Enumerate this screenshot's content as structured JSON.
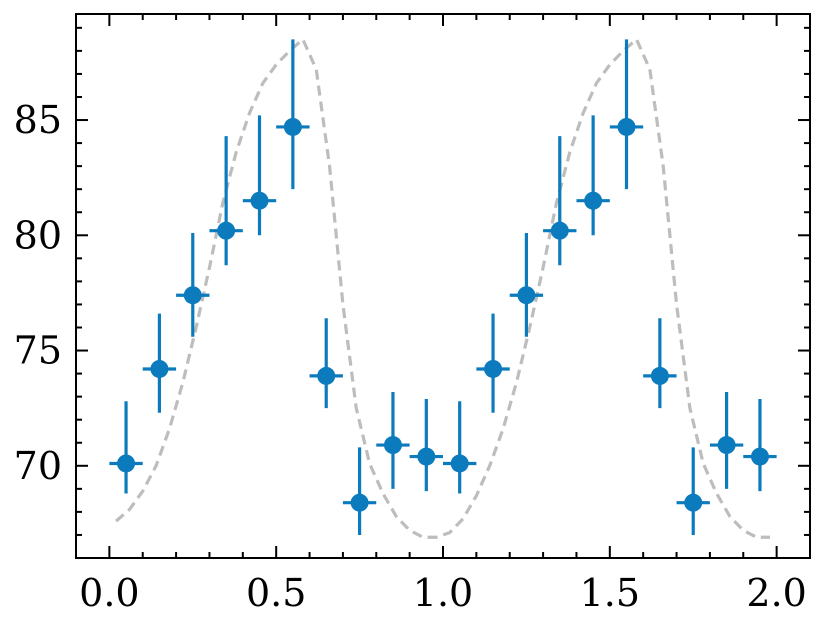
{
  "chart_data": {
    "type": "scatter",
    "title": "",
    "xlabel": "",
    "ylabel": "",
    "xlim": [
      -0.1,
      2.1
    ],
    "ylim": [
      66,
      89.6
    ],
    "x_ticks": [
      0.0,
      0.5,
      1.0,
      1.5,
      2.0
    ],
    "x_tick_labels": [
      "0.0",
      "0.5",
      "1.0",
      "1.5",
      "2.0"
    ],
    "y_ticks": [
      70,
      75,
      80,
      85
    ],
    "y_tick_labels": [
      "70",
      "75",
      "80",
      "85"
    ],
    "grid": false,
    "colors": {
      "points": "#0C7BBD",
      "model_line": "#bdbdbd"
    },
    "series": [
      {
        "kind": "errorbar",
        "x": [
          0.05,
          0.15,
          0.25,
          0.35,
          0.45,
          0.55,
          0.65,
          0.75,
          0.85,
          0.95,
          1.05,
          1.15,
          1.25,
          1.35,
          1.45,
          1.55,
          1.65,
          1.75,
          1.85,
          1.95
        ],
        "y": [
          70.1,
          74.2,
          77.4,
          80.2,
          81.5,
          84.7,
          73.9,
          68.4,
          70.9,
          70.4,
          70.1,
          74.2,
          77.4,
          80.2,
          81.5,
          84.7,
          73.9,
          68.4,
          70.9,
          70.4
        ],
        "y_low": [
          68.8,
          72.3,
          75.6,
          78.7,
          80.0,
          82.0,
          72.5,
          67.0,
          69.0,
          68.9,
          68.8,
          72.3,
          75.6,
          78.7,
          80.0,
          82.0,
          72.5,
          67.0,
          69.0,
          68.9
        ],
        "y_high": [
          72.8,
          76.6,
          80.1,
          84.3,
          85.2,
          88.5,
          76.4,
          70.8,
          73.2,
          72.9,
          72.8,
          76.6,
          80.1,
          84.3,
          85.2,
          88.5,
          76.4,
          70.8,
          73.2,
          72.9
        ],
        "x_err": 0.05
      },
      {
        "kind": "line",
        "style": "dashed",
        "x": [
          0.02,
          0.06,
          0.1,
          0.14,
          0.18,
          0.22,
          0.26,
          0.3,
          0.34,
          0.38,
          0.42,
          0.46,
          0.5,
          0.54,
          0.58,
          0.62,
          0.66,
          0.7,
          0.74,
          0.78,
          0.82,
          0.86,
          0.9,
          0.94,
          0.98,
          1.02,
          1.06,
          1.1,
          1.14,
          1.18,
          1.22,
          1.26,
          1.3,
          1.34,
          1.38,
          1.42,
          1.46,
          1.5,
          1.54,
          1.58,
          1.62,
          1.66,
          1.7,
          1.74,
          1.78,
          1.82,
          1.86,
          1.9,
          1.94,
          1.98
        ],
        "y": [
          67.6,
          68.1,
          68.9,
          70.0,
          71.6,
          73.6,
          76.0,
          78.6,
          81.4,
          83.6,
          85.3,
          86.6,
          87.4,
          88.0,
          88.5,
          87.2,
          83.0,
          77.0,
          72.5,
          70.1,
          68.8,
          67.8,
          67.2,
          66.9,
          66.9,
          67.1,
          67.7,
          68.7,
          70.0,
          71.6,
          73.6,
          76.0,
          78.6,
          81.4,
          83.6,
          85.3,
          86.6,
          87.4,
          88.0,
          88.5,
          87.2,
          83.0,
          77.0,
          72.5,
          70.1,
          68.8,
          67.8,
          67.2,
          66.9,
          66.9
        ]
      }
    ]
  }
}
